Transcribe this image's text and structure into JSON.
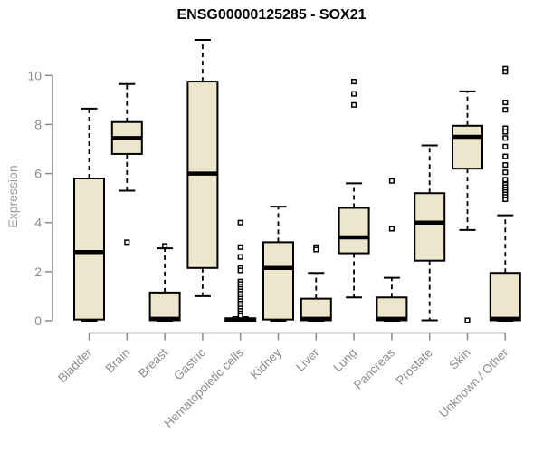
{
  "chart_data": {
    "type": "boxplot",
    "title": "ENSG00000125285 - SOX21",
    "ylabel": "Expression",
    "xlabel": "",
    "ylim": [
      0,
      11.6
    ],
    "yticks": [
      0,
      2,
      4,
      6,
      8,
      10
    ],
    "grid": false,
    "legend": "none",
    "categories": [
      "Bladder",
      "Brain",
      "Breast",
      "Gastric",
      "Hematopoietic cells",
      "Kidney",
      "Liver",
      "Lung",
      "Pancreas",
      "Prostate",
      "Skin",
      "Unknown / Other"
    ],
    "boxes": [
      {
        "name": "Bladder",
        "whisker_low": 0,
        "q1": 0.05,
        "median": 2.8,
        "q3": 5.8,
        "whisker_high": 8.65,
        "outliers": []
      },
      {
        "name": "Brain",
        "whisker_low": 5.3,
        "q1": 6.8,
        "median": 7.45,
        "q3": 8.1,
        "whisker_high": 9.65,
        "outliers": [
          3.2
        ]
      },
      {
        "name": "Breast",
        "whisker_low": 0,
        "q1": 0.02,
        "median": 0.08,
        "q3": 1.15,
        "whisker_high": 2.95,
        "outliers": [
          3.05
        ]
      },
      {
        "name": "Gastric",
        "whisker_low": 1.0,
        "q1": 2.15,
        "median": 6.0,
        "q3": 9.75,
        "whisker_high": 11.45,
        "outliers": []
      },
      {
        "name": "Hematopoietic cells",
        "whisker_low": 0,
        "q1": 0,
        "median": 0.05,
        "q3": 0.1,
        "whisker_high": 0.15,
        "outliers": [
          4.0,
          3.0,
          2.6,
          2.15,
          2.05,
          1.6,
          1.5,
          1.4,
          1.3,
          1.2,
          1.1,
          1.0,
          0.9,
          0.8,
          0.7,
          0.6,
          0.5,
          0.4,
          0.3,
          0.2
        ]
      },
      {
        "name": "Kidney",
        "whisker_low": 0,
        "q1": 0.05,
        "median": 2.15,
        "q3": 3.2,
        "whisker_high": 4.65,
        "outliers": []
      },
      {
        "name": "Liver",
        "whisker_low": 0,
        "q1": 0.02,
        "median": 0.08,
        "q3": 0.9,
        "whisker_high": 1.95,
        "outliers": [
          3.0,
          2.9
        ]
      },
      {
        "name": "Lung",
        "whisker_low": 0.95,
        "q1": 2.75,
        "median": 3.4,
        "q3": 4.6,
        "whisker_high": 5.6,
        "outliers": [
          9.75,
          9.25,
          8.8
        ]
      },
      {
        "name": "Pancreas",
        "whisker_low": 0,
        "q1": 0.02,
        "median": 0.08,
        "q3": 0.95,
        "whisker_high": 1.75,
        "outliers": [
          5.7,
          3.75
        ]
      },
      {
        "name": "Prostate",
        "whisker_low": 0.02,
        "q1": 2.45,
        "median": 4.0,
        "q3": 5.2,
        "whisker_high": 7.15,
        "outliers": []
      },
      {
        "name": "Skin",
        "whisker_low": 3.7,
        "q1": 6.2,
        "median": 7.5,
        "q3": 7.95,
        "whisker_high": 9.35,
        "outliers": [
          0.02
        ]
      },
      {
        "name": "Unknown / Other",
        "whisker_low": 0,
        "q1": 0.02,
        "median": 0.08,
        "q3": 1.95,
        "whisker_high": 4.3,
        "outliers": [
          10.28,
          10.15,
          8.9,
          8.6,
          7.85,
          7.7,
          7.45,
          7.1,
          6.7,
          6.35,
          6.05,
          5.75,
          5.55,
          5.45,
          5.35,
          5.25,
          5.15,
          5.05,
          4.95
        ]
      }
    ]
  },
  "colors": {
    "background": "#ffffff",
    "box_fill": "#ECE7CC",
    "box_stroke": "#000000",
    "median": "#000000",
    "whisker": "#000000",
    "outlier_fill": "#ffffff",
    "outlier_stroke": "#000000",
    "axis": "#888888",
    "tick_label": "#8C8C8C",
    "axis_label": "#999999",
    "title": "#000000"
  }
}
